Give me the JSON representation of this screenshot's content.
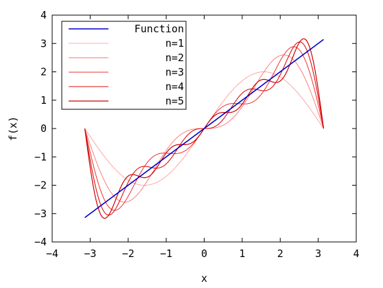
{
  "chart_data": {
    "type": "line",
    "title": "",
    "xlabel": "x",
    "ylabel": "f(x)",
    "xlim": [
      -4,
      4
    ],
    "ylim": [
      -4,
      4
    ],
    "xticks": [
      -4,
      -3,
      -2,
      -1,
      0,
      1,
      2,
      3,
      4
    ],
    "yticks": [
      -4,
      -3,
      -2,
      -1,
      0,
      1,
      2,
      3,
      4
    ],
    "xtick_labels": [
      "−4",
      "−3",
      "−2",
      "−1",
      "0",
      "1",
      "2",
      "3",
      "4"
    ],
    "ytick_labels": [
      "−4",
      "−3",
      "−2",
      "−1",
      "0",
      "1",
      "2",
      "3",
      "4"
    ],
    "grid": false,
    "legend_position": "top-left",
    "series": [
      {
        "name": "Function",
        "color": "#0000cc",
        "stroke_width": 1.6,
        "x": [
          -3.1416,
          3.1416
        ],
        "y": [
          -3.1416,
          3.1416
        ]
      },
      {
        "name": "n=1",
        "color": "#ff9090",
        "stroke_width": 0.8,
        "expression": "2*sin(x)",
        "x_range": [
          -3.1416,
          3.1416
        ]
      },
      {
        "name": "n=2",
        "color": "#ff7070",
        "stroke_width": 0.9,
        "expression": "2*sin(x) - sin(2x)",
        "x_range": [
          -3.1416,
          3.1416
        ]
      },
      {
        "name": "n=3",
        "color": "#ee3030",
        "stroke_width": 1.0,
        "expression": "2*sin(x) - sin(2x) + (2/3)*sin(3x)",
        "x_range": [
          -3.1416,
          3.1416
        ]
      },
      {
        "name": "n=4",
        "color": "#dd1010",
        "stroke_width": 1.1,
        "expression": "2*sin(x) - sin(2x) + (2/3)*sin(3x) - (1/2)*sin(4x)",
        "x_range": [
          -3.1416,
          3.1416
        ]
      },
      {
        "name": "n=5",
        "color": "#cc0000",
        "stroke_width": 1.2,
        "expression": "2*sin(x) - sin(2x) + (2/3)*sin(3x) - (1/2)*sin(4x) + (2/5)*sin(5x)",
        "x_range": [
          -3.1416,
          3.1416
        ]
      }
    ]
  }
}
